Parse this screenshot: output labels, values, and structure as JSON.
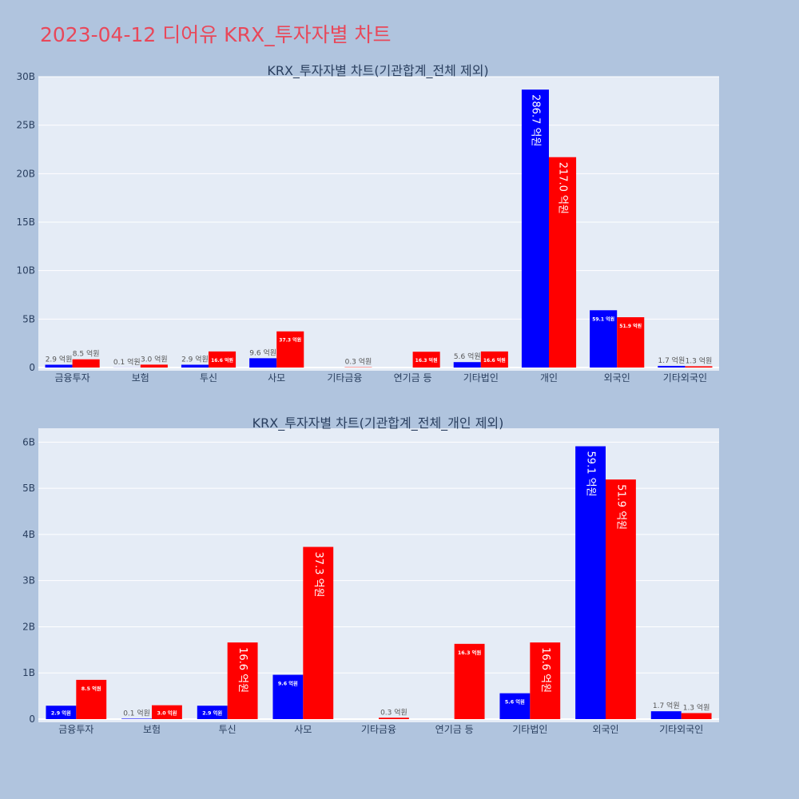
{
  "page_title": "2023-04-12 디어유 KRX_투자자별 차트",
  "colors": {
    "buy": "#0000ff",
    "sell": "#ff0000",
    "title": "#e8485a",
    "plot_bg": "#e5ecf6",
    "paper_bg": "#b0c4de"
  },
  "chart_data": [
    {
      "type": "bar",
      "title": "KRX_투자자별 차트(기관합계_전체 제외)",
      "categories": [
        "금융투자",
        "보험",
        "투신",
        "사모",
        "기타금융",
        "연기금 등",
        "기타법인",
        "개인",
        "외국인",
        "기타외국인"
      ],
      "series": [
        {
          "color": "#0000ff",
          "values": [
            290000000,
            10000000,
            290000000,
            960000000,
            0,
            0,
            560000000,
            28670000000,
            5910000000,
            170000000
          ],
          "labels": [
            "2.9 억원",
            "0.1 억원",
            "2.9 억원",
            "9.6 억원",
            "",
            "",
            "5.6 억원",
            "286.7 억원",
            "59.1 억원",
            "1.7 억원"
          ]
        },
        {
          "color": "#ff0000",
          "values": [
            850000000,
            300000000,
            1660000000,
            3730000000,
            30000000,
            1630000000,
            1660000000,
            21700000000,
            5190000000,
            130000000
          ],
          "labels": [
            "8.5 억원",
            "3.0 억원",
            "16.6 억원",
            "37.3 억원",
            "0.3 억원",
            "16.3 억원",
            "16.6 억원",
            "217.0 억원",
            "51.9 억원",
            "1.3 억원"
          ]
        }
      ],
      "ylim": [
        0,
        30000000000
      ],
      "yticks": [
        0,
        5000000000,
        10000000000,
        15000000000,
        20000000000,
        25000000000,
        30000000000
      ],
      "ytick_labels": [
        "0",
        "5B",
        "10B",
        "15B",
        "20B",
        "25B",
        "30B"
      ],
      "grid": true
    },
    {
      "type": "bar",
      "title": "KRX_투자자별 차트(기관합계_전체_개인 제외)",
      "categories": [
        "금융투자",
        "보험",
        "투신",
        "사모",
        "기타금융",
        "연기금 등",
        "기타법인",
        "외국인",
        "기타외국인"
      ],
      "series": [
        {
          "color": "#0000ff",
          "values": [
            290000000,
            10000000,
            290000000,
            960000000,
            0,
            0,
            560000000,
            5910000000,
            170000000
          ],
          "labels": [
            "2.9 억원",
            "0.1 억원",
            "2.9 억원",
            "9.6 억원",
            "",
            "",
            "5.6 억원",
            "59.1 억원",
            "1.7 억원"
          ]
        },
        {
          "color": "#ff0000",
          "values": [
            850000000,
            300000000,
            1660000000,
            3730000000,
            30000000,
            1630000000,
            1660000000,
            5190000000,
            130000000
          ],
          "labels": [
            "8.5 억원",
            "3.0 억원",
            "16.6 억원",
            "37.3 억원",
            "0.3 억원",
            "16.3 억원",
            "16.6 억원",
            "51.9 억원",
            "1.3 억원"
          ]
        }
      ],
      "ylim": [
        0,
        6300000000
      ],
      "yticks": [
        0,
        1000000000,
        2000000000,
        3000000000,
        4000000000,
        5000000000,
        6000000000
      ],
      "ytick_labels": [
        "0",
        "1B",
        "2B",
        "3B",
        "4B",
        "5B",
        "6B"
      ],
      "grid": true
    }
  ]
}
